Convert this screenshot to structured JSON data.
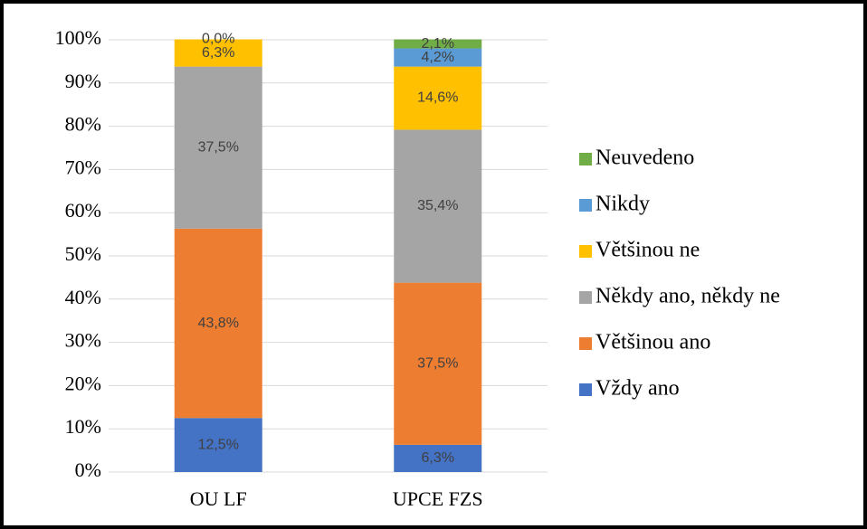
{
  "chart_data": {
    "type": "stacked_bar",
    "categories": [
      "OU LF",
      "UPCE FZS"
    ],
    "ylim": [
      0,
      100
    ],
    "yticks": [
      {
        "value": 0,
        "label": "0%"
      },
      {
        "value": 10,
        "label": "10%"
      },
      {
        "value": 20,
        "label": "20%"
      },
      {
        "value": 30,
        "label": "30%"
      },
      {
        "value": 40,
        "label": "40%"
      },
      {
        "value": 50,
        "label": "50%"
      },
      {
        "value": 60,
        "label": "60%"
      },
      {
        "value": 70,
        "label": "70%"
      },
      {
        "value": 80,
        "label": "80%"
      },
      {
        "value": 90,
        "label": "90%"
      },
      {
        "value": 100,
        "label": "100%"
      }
    ],
    "grid": true,
    "legend": "right",
    "series": [
      {
        "name": "Vždy ano",
        "color": "#4472c4",
        "values": [
          12.5,
          6.3
        ],
        "value_labels": [
          "12,5%",
          "6,3%"
        ]
      },
      {
        "name": "Většinou ano",
        "color": "#ed7d31",
        "values": [
          43.8,
          37.5
        ],
        "value_labels": [
          "43,8%",
          "37,5%"
        ]
      },
      {
        "name": "Někdy ano, někdy ne",
        "color": "#a5a5a5",
        "values": [
          37.5,
          35.4
        ],
        "value_labels": [
          "37,5%",
          "35,4%"
        ]
      },
      {
        "name": "Většinou ne",
        "color": "#ffc000",
        "values": [
          6.3,
          14.6
        ],
        "value_labels": [
          "6,3%",
          "14,6%"
        ]
      },
      {
        "name": "Nikdy",
        "color": "#5b9bd5",
        "values": [
          null,
          4.2
        ],
        "value_labels": [
          null,
          "4,2%"
        ]
      },
      {
        "name": "Neuvedeno",
        "color": "#70ad47",
        "values": [
          0.0,
          2.1
        ],
        "value_labels": [
          "0,0%",
          "2,1%"
        ]
      }
    ]
  }
}
